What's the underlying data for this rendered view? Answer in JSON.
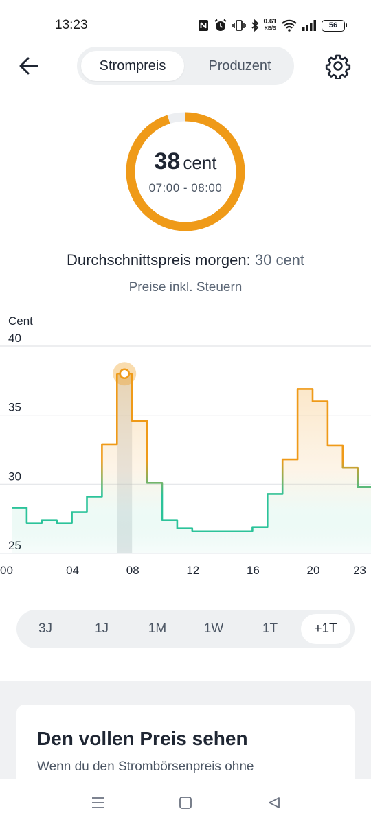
{
  "status_bar": {
    "time": "13:23",
    "net_speed_value": "0.61",
    "net_speed_unit": "KB/S",
    "battery": "56",
    "icons": [
      "nfc-icon",
      "alarm-icon",
      "vibrate-icon",
      "bluetooth-icon",
      "wifi-icon",
      "signal-icon",
      "battery-icon"
    ]
  },
  "header": {
    "tabs": [
      {
        "label": "Strompreis",
        "active": true
      },
      {
        "label": "Produzent",
        "active": false
      }
    ]
  },
  "current_price": {
    "value": "38",
    "unit": "cent",
    "time_range": "07:00 - 08:00",
    "gauge_fraction": 0.95
  },
  "average": {
    "label": "Durchschnittspreis morgen:",
    "value": "30 cent"
  },
  "tax_note": "Preise inkl. Steuern",
  "chart_data": {
    "type": "line",
    "step": true,
    "ylabel": "Cent",
    "ylim": [
      25,
      40
    ],
    "yticks": [
      "40",
      "35",
      "30",
      "25"
    ],
    "xticks": [
      "00",
      "04",
      "08",
      "12",
      "16",
      "20",
      "23"
    ],
    "x_hours": [
      0,
      1,
      2,
      3,
      4,
      5,
      6,
      7,
      8,
      9,
      10,
      11,
      12,
      13,
      14,
      15,
      16,
      17,
      18,
      19,
      20,
      21,
      22,
      23
    ],
    "values": [
      28.3,
      27.2,
      27.4,
      27.2,
      28.0,
      29.1,
      32.9,
      38.0,
      34.6,
      30.1,
      27.4,
      26.8,
      26.6,
      26.6,
      26.6,
      26.6,
      26.9,
      29.3,
      31.8,
      36.9,
      36.0,
      32.8,
      31.2,
      29.8
    ],
    "selected_hour": 7,
    "colors": {
      "high": "#ef9a18",
      "low": "#2cc39a",
      "grid": "#e2e4e8"
    }
  },
  "range_selector": {
    "options": [
      {
        "label": "3J",
        "active": false
      },
      {
        "label": "1J",
        "active": false
      },
      {
        "label": "1M",
        "active": false
      },
      {
        "label": "1W",
        "active": false
      },
      {
        "label": "1T",
        "active": false
      },
      {
        "label": "+1T",
        "active": true
      }
    ]
  },
  "promo_card": {
    "title": "Den vollen Preis sehen",
    "text": "Wenn du den Strombörsenpreis ohne"
  },
  "colors": {
    "accent": "#ef9a18",
    "green": "#2cc39a",
    "text": "#1f2633",
    "muted": "#5b6675"
  }
}
